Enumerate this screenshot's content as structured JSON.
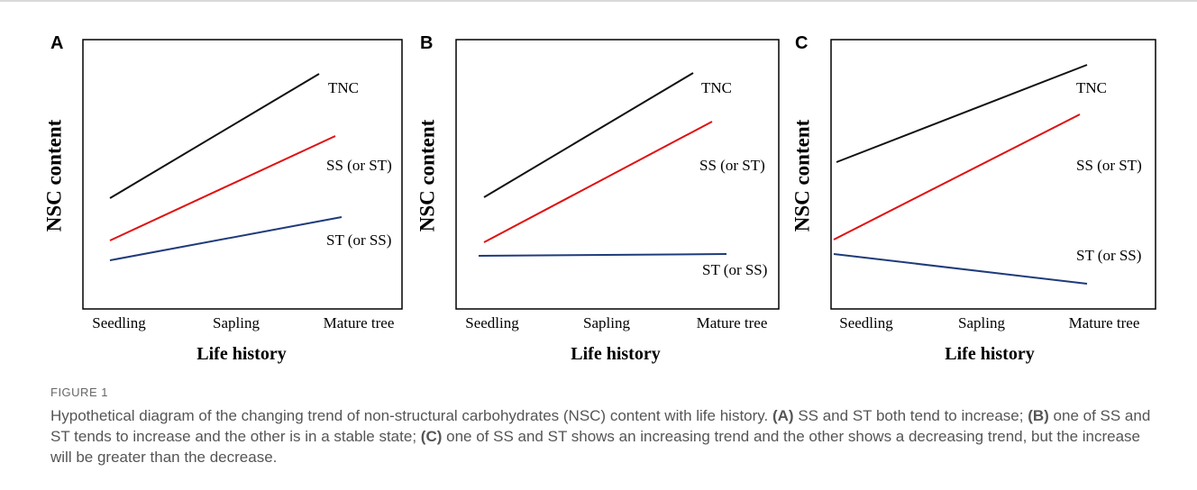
{
  "figure": {
    "panels": [
      {
        "label": "A",
        "y_label": "NSC content",
        "x_label": "Life history",
        "x_ticks": [
          "Seedling",
          "Sapling",
          "Mature tree"
        ],
        "series_labels": [
          "TNC",
          "SS (or ST)",
          "ST (or SS)"
        ]
      },
      {
        "label": "B",
        "y_label": "NSC content",
        "x_label": "Life history",
        "x_ticks": [
          "Seedling",
          "Sapling",
          "Mature tree"
        ],
        "series_labels": [
          "TNC",
          "SS (or ST)",
          "ST (or SS)"
        ]
      },
      {
        "label": "C",
        "y_label": "NSC content",
        "x_label": "Life history",
        "x_ticks": [
          "Seedling",
          "Sapling",
          "Mature tree"
        ],
        "series_labels": [
          "TNC",
          "SS (or ST)",
          "ST (or SS)"
        ]
      }
    ],
    "caption": {
      "label": "FIGURE 1",
      "intro": "Hypothetical diagram of the changing trend of non-structural carbohydrates (NSC) content with life history.",
      "parts": [
        {
          "label": "(A)",
          "text": "SS and ST both tend to increase;"
        },
        {
          "label": "(B)",
          "text": "one of SS and ST tends to increase and the other is in a stable state;"
        },
        {
          "label": "(C)",
          "text": "one of SS and ST shows an increasing trend and the other shows a decreasing trend, but the increase will be greater than the decrease."
        }
      ]
    }
  }
}
